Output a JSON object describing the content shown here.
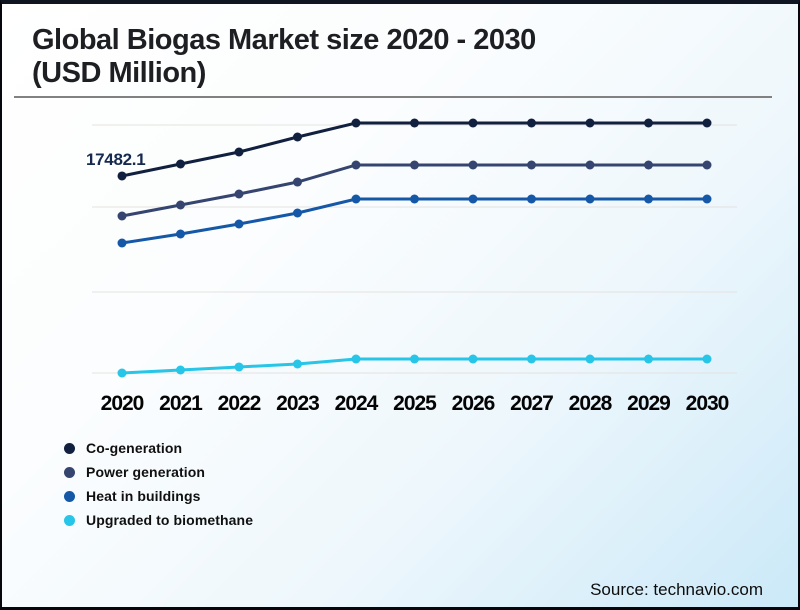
{
  "header": {
    "title_line1": "Global Biogas Market size 2020 - 2030",
    "title_line2": "(USD Million)"
  },
  "chart_data": {
    "type": "line",
    "title": "Global Biogas Market size 2020 - 2030 (USD Million)",
    "categories": [
      "2020",
      "2021",
      "2022",
      "2023",
      "2024",
      "2025",
      "2026",
      "2027",
      "2028",
      "2029",
      "2030"
    ],
    "series": [
      {
        "name": "Co-generation",
        "color": "#12203f",
        "values": [
          17482.1,
          18466,
          19451,
          20682,
          21831,
          21831,
          21831,
          21831,
          21831,
          21831,
          21831
        ]
      },
      {
        "name": "Power generation",
        "color": "#35456f",
        "values": [
          14198,
          15101,
          16004,
          16988,
          18384,
          18384,
          18384,
          18384,
          18384,
          18384,
          18384
        ]
      },
      {
        "name": "Heat in buildings",
        "color": "#1558a7",
        "values": [
          11982,
          12721,
          13542,
          14444,
          15593,
          15593,
          15593,
          15593,
          15593,
          15593,
          15593
        ]
      },
      {
        "name": "Upgraded to biomethane",
        "color": "#27c5e8",
        "values": [
          1313,
          1559,
          1806,
          2052,
          2462,
          2462,
          2462,
          2462,
          2462,
          2462,
          2462
        ]
      }
    ],
    "annotations": [
      {
        "text": "17482.1",
        "series_index": 0,
        "category_index": 0
      }
    ],
    "grid": true,
    "legend_position": "bottom-left",
    "xlabel": "",
    "ylabel": "",
    "ylim": [
      0,
      23800
    ],
    "note": "Only the 2020 Co-generation point is labeled on the chart; other values are estimated from line positions."
  },
  "footer": {
    "source": "Source: technavio.com"
  },
  "colors": {
    "grid": "#e4e2e0",
    "annotation": "#16294e",
    "title": "#1e1f23"
  }
}
